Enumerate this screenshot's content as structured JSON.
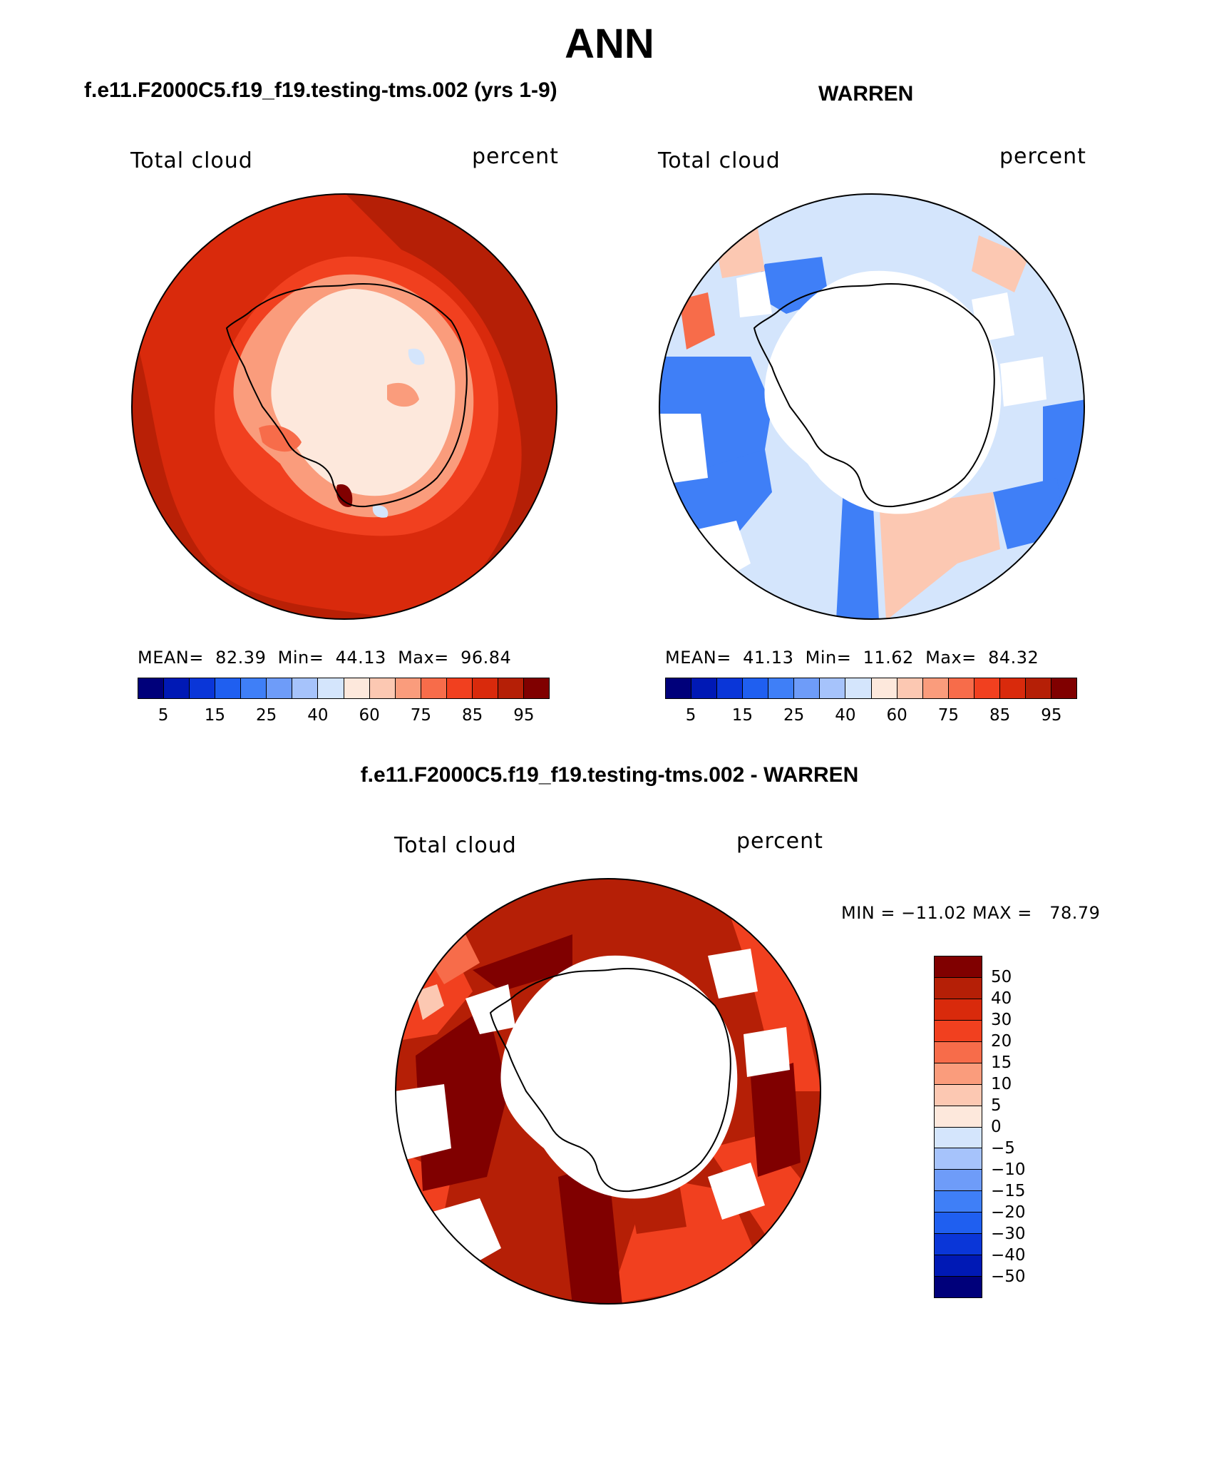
{
  "season": "ANN",
  "panels": {
    "top_left": {
      "title": "f.e11.F2000C5.f19_f19.testing-tms.002 (yrs 1-9)",
      "variable": "Total cloud",
      "units": "percent",
      "stats": {
        "mean_label": "MEAN=",
        "mean": "82.39",
        "min_label": "Min=",
        "min": "44.13",
        "max_label": "Max=",
        "max": "96.84"
      }
    },
    "top_right": {
      "title": "WARREN",
      "variable": "Total cloud",
      "units": "percent",
      "stats": {
        "mean_label": "MEAN=",
        "mean": "41.13",
        "min_label": "Min=",
        "min": "11.62",
        "max_label": "Max=",
        "max": "84.32"
      }
    },
    "bottom": {
      "title": "f.e11.F2000C5.f19_f19.testing-tms.002 - WARREN",
      "variable": "Total cloud",
      "units": "percent",
      "range": "MIN = −11.02 MAX =   78.79"
    }
  },
  "colorbar_abs": {
    "colors": [
      "#00007a",
      "#0019b5",
      "#0a36d8",
      "#1f5ff0",
      "#3f7ff7",
      "#6e9cf9",
      "#a6c3fb",
      "#d4e5fc",
      "#fde8dc",
      "#fcc8b2",
      "#fa9c7c",
      "#f76c4a",
      "#f1401f",
      "#d92a0c",
      "#b51f06",
      "#800000"
    ],
    "tick_labels": [
      "5",
      "15",
      "25",
      "40",
      "60",
      "75",
      "85",
      "95"
    ]
  },
  "colorbar_diff": {
    "colors": [
      "#800000",
      "#b51f06",
      "#d92a0c",
      "#f1401f",
      "#f76c4a",
      "#fa9c7c",
      "#fcc8b2",
      "#fde8dc",
      "#d4e5fc",
      "#a6c3fb",
      "#6e9cf9",
      "#3f7ff7",
      "#1f5ff0",
      "#0a36d8",
      "#0019b5",
      "#00007a"
    ],
    "tick_labels": [
      "50",
      "40",
      "30",
      "20",
      "15",
      "10",
      "5",
      "0",
      "−5",
      "−10",
      "−15",
      "−20",
      "−30",
      "−40",
      "−50"
    ]
  }
}
